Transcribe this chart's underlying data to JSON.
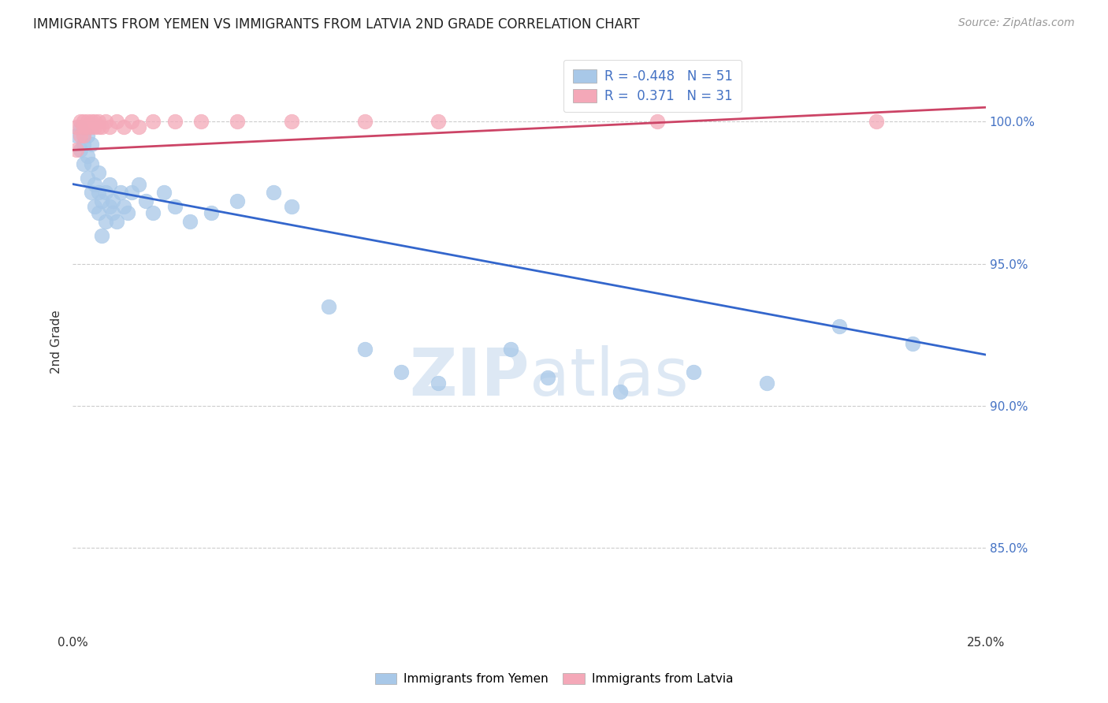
{
  "title": "IMMIGRANTS FROM YEMEN VS IMMIGRANTS FROM LATVIA 2ND GRADE CORRELATION CHART",
  "source": "Source: ZipAtlas.com",
  "ylabel": "2nd Grade",
  "ytick_labels": [
    "85.0%",
    "90.0%",
    "95.0%",
    "100.0%"
  ],
  "ytick_values": [
    0.85,
    0.9,
    0.95,
    1.0
  ],
  "xlim": [
    0.0,
    0.25
  ],
  "ylim": [
    0.82,
    1.025
  ],
  "legend_blue_r": "-0.448",
  "legend_blue_n": "51",
  "legend_pink_r": "0.371",
  "legend_pink_n": "31",
  "legend_label_blue": "Immigrants from Yemen",
  "legend_label_pink": "Immigrants from Latvia",
  "blue_color": "#a8c8e8",
  "pink_color": "#f4a8b8",
  "blue_line_color": "#3366cc",
  "pink_line_color": "#cc4466",
  "watermark_color": "#dde8f4",
  "yemen_x": [
    0.001,
    0.002,
    0.002,
    0.003,
    0.003,
    0.003,
    0.004,
    0.004,
    0.004,
    0.005,
    0.005,
    0.005,
    0.006,
    0.006,
    0.007,
    0.007,
    0.007,
    0.008,
    0.008,
    0.009,
    0.009,
    0.01,
    0.01,
    0.011,
    0.011,
    0.012,
    0.013,
    0.014,
    0.015,
    0.016,
    0.018,
    0.02,
    0.022,
    0.025,
    0.028,
    0.032,
    0.038,
    0.045,
    0.055,
    0.06,
    0.07,
    0.08,
    0.09,
    0.1,
    0.12,
    0.13,
    0.15,
    0.17,
    0.19,
    0.21,
    0.23
  ],
  "yemen_y": [
    0.995,
    0.998,
    0.99,
    0.996,
    0.992,
    0.985,
    0.988,
    0.995,
    0.98,
    0.985,
    0.975,
    0.992,
    0.978,
    0.97,
    0.968,
    0.975,
    0.982,
    0.96,
    0.972,
    0.965,
    0.975,
    0.97,
    0.978,
    0.972,
    0.968,
    0.965,
    0.975,
    0.97,
    0.968,
    0.975,
    0.978,
    0.972,
    0.968,
    0.975,
    0.97,
    0.965,
    0.968,
    0.972,
    0.975,
    0.97,
    0.935,
    0.92,
    0.912,
    0.908,
    0.92,
    0.91,
    0.905,
    0.912,
    0.908,
    0.928,
    0.922
  ],
  "latvia_x": [
    0.001,
    0.001,
    0.002,
    0.002,
    0.003,
    0.003,
    0.003,
    0.004,
    0.004,
    0.005,
    0.005,
    0.006,
    0.006,
    0.007,
    0.007,
    0.008,
    0.009,
    0.01,
    0.012,
    0.014,
    0.016,
    0.018,
    0.022,
    0.028,
    0.035,
    0.045,
    0.06,
    0.08,
    0.1,
    0.16,
    0.22
  ],
  "latvia_y": [
    0.99,
    0.998,
    0.995,
    1.0,
    0.998,
    1.0,
    0.995,
    0.998,
    1.0,
    0.998,
    1.0,
    0.998,
    1.0,
    0.998,
    1.0,
    0.998,
    1.0,
    0.998,
    1.0,
    0.998,
    1.0,
    0.998,
    1.0,
    1.0,
    1.0,
    1.0,
    1.0,
    1.0,
    1.0,
    1.0,
    1.0
  ],
  "blue_line_x": [
    0.0,
    0.25
  ],
  "blue_line_y": [
    0.978,
    0.918
  ],
  "pink_line_x": [
    0.0,
    0.25
  ],
  "pink_line_y": [
    0.99,
    1.005
  ]
}
